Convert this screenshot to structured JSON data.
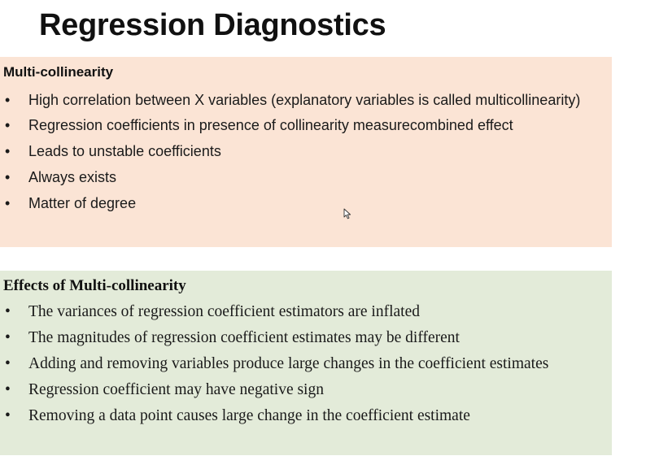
{
  "title": "Regression Diagnostics",
  "sections": [
    {
      "heading": "Multi-collinearity",
      "items": [
        "High correlation between X variables (explanatory variables is called multicollinearity)",
        "Regression coefficients in presence of collinearity measurecombined effect",
        "Leads to unstable coefficients",
        "Always exists",
        "Matter of degree"
      ]
    },
    {
      "heading": "Effects of Multi-collinearity",
      "items": [
        "The variances of regression coefficient estimators are inflated",
        "The magnitudes of regression coefficient estimates may be different",
        "Adding and removing variables produce large changes in the coefficient estimates",
        "Regression coefficient may have negative sign",
        "Removing a data point causes large change in the coefficient estimate"
      ]
    }
  ],
  "colors": {
    "section1_background": "#fbe4d5",
    "section2_background": "#e3ebd9"
  },
  "icons": {
    "bullet": "bullet-dot-icon",
    "cursor": "mouse-pointer-icon"
  }
}
